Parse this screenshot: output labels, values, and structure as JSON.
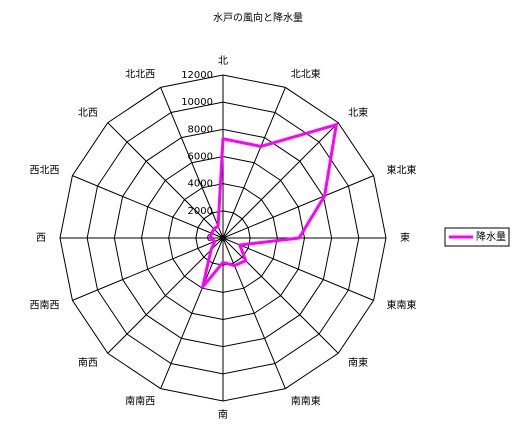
{
  "chart_data": {
    "type": "radar",
    "title": "水戸の風向と降水量",
    "categories": [
      "北",
      "北北東",
      "北東",
      "東北東",
      "東",
      "東南東",
      "南東",
      "南南東",
      "南",
      "南南西",
      "南西",
      "西南西",
      "西",
      "西北西",
      "北西",
      "北北西"
    ],
    "series": [
      {
        "name": "降水量",
        "color": "#ff00ff",
        "values": [
          7300,
          7300,
          11800,
          8100,
          5600,
          1350,
          2350,
          2200,
          1800,
          3900,
          1250,
          650,
          950,
          900,
          950,
          950
        ]
      }
    ],
    "ylim": [
      0,
      12000
    ],
    "yticks": [
      0,
      2000,
      4000,
      6000,
      8000,
      10000,
      12000
    ],
    "grid": true,
    "legend": "right"
  }
}
